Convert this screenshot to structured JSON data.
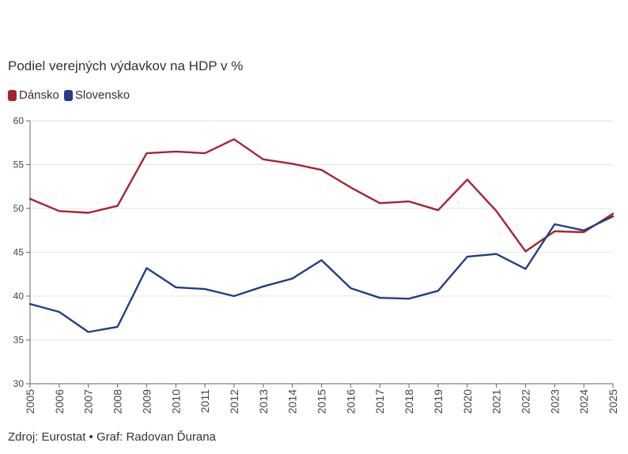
{
  "chart_data": {
    "type": "line",
    "title": "Podiel verejných výdavkov na HDP v %",
    "x": [
      "2005",
      "2006",
      "2007",
      "2008",
      "2009",
      "2010",
      "2011",
      "2012",
      "2013",
      "2014",
      "2015",
      "2016",
      "2017",
      "2018",
      "2019",
      "2020",
      "2021",
      "2022",
      "2023",
      "2024",
      "2025"
    ],
    "series": [
      {
        "name": "Dánsko",
        "color": "#a82234",
        "values": [
          51.1,
          49.7,
          49.5,
          50.3,
          56.3,
          56.5,
          56.3,
          57.9,
          55.6,
          55.1,
          54.4,
          52.4,
          50.6,
          50.8,
          49.8,
          53.3,
          49.7,
          45.1,
          47.4,
          47.3,
          49.4
        ]
      },
      {
        "name": "Slovensko",
        "color": "#243e86",
        "values": [
          39.1,
          38.2,
          35.9,
          36.5,
          43.2,
          41.0,
          40.8,
          40.0,
          41.1,
          42.0,
          44.1,
          40.9,
          39.8,
          39.7,
          40.6,
          44.5,
          44.8,
          43.1,
          48.2,
          47.5,
          49.1
        ]
      }
    ],
    "ylim": [
      30,
      60
    ],
    "yticks": [
      "60",
      "55",
      "50",
      "45",
      "40",
      "35",
      "30"
    ],
    "grid": true,
    "legend": "top-left"
  },
  "footer": "Zdroj: Eurostat • Graf: Radovan Ďurana"
}
